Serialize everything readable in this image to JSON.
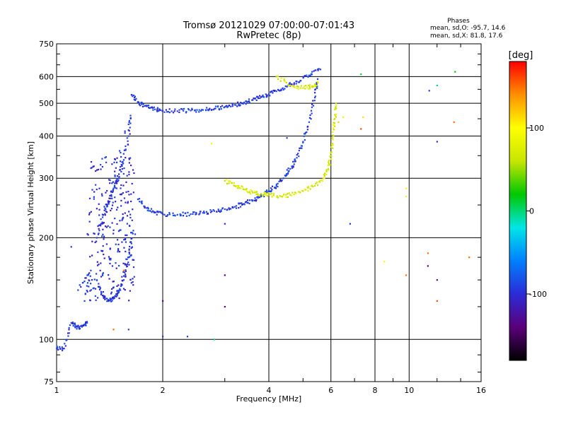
{
  "chart_data": {
    "type": "scatter",
    "title": "Tromsø 20121029 07:00:00-07:01:43",
    "subtitle": "RwPretec (8p)",
    "xlabel": "Frequency [MHz]",
    "ylabel": "Stationary phase Virtual Height [km]",
    "x_scale": "log",
    "y_scale": "log",
    "xlim": [
      1,
      16
    ],
    "ylim": [
      75,
      750
    ],
    "x_ticks": [
      "1",
      "2",
      "4",
      "6",
      "8",
      "10",
      "16"
    ],
    "y_ticks": [
      "75",
      "100",
      "200",
      "300",
      "400",
      "500",
      "600",
      "750"
    ],
    "grid": true,
    "phase_stats": {
      "heading": "Phases",
      "o_line": "mean, sd,O: -95.7, 14.6",
      "x_line": "mean, sd,X: 81.8, 17.6"
    },
    "colorbar": {
      "unit": "[deg]",
      "range": [
        -180,
        180
      ],
      "ticks": [
        "100",
        "0",
        "-100"
      ],
      "colors": [
        "#000000",
        "#5a007a",
        "#2b2bd6",
        "#0080ff",
        "#00e6e6",
        "#00c800",
        "#c8e600",
        "#ffff00",
        "#ff9000",
        "#ff0000"
      ]
    },
    "traces": [
      {
        "mode": "O",
        "phase_deg": -95,
        "color": "#2244ee",
        "points": [
          [
            1.63,
            530
          ],
          [
            1.7,
            505
          ],
          [
            1.8,
            490
          ],
          [
            1.9,
            480
          ],
          [
            2.0,
            475
          ],
          [
            2.2,
            474
          ],
          [
            2.4,
            476
          ],
          [
            2.6,
            478
          ],
          [
            2.8,
            482
          ],
          [
            3.0,
            488
          ],
          [
            3.2,
            495
          ],
          [
            3.4,
            503
          ],
          [
            3.6,
            512
          ],
          [
            3.8,
            522
          ],
          [
            4.0,
            532
          ],
          [
            4.2,
            543
          ],
          [
            4.5,
            560
          ],
          [
            4.8,
            580
          ],
          [
            5.2,
            605
          ],
          [
            5.6,
            630
          ]
        ]
      },
      {
        "mode": "O",
        "phase_deg": -95,
        "color": "#2244ee",
        "points": [
          [
            1.7,
            260
          ],
          [
            1.8,
            245
          ],
          [
            1.9,
            238
          ],
          [
            2.0,
            235
          ],
          [
            2.2,
            234
          ],
          [
            2.4,
            235
          ],
          [
            2.6,
            237
          ],
          [
            2.8,
            240
          ],
          [
            3.0,
            243
          ],
          [
            3.2,
            247
          ],
          [
            3.4,
            252
          ],
          [
            3.6,
            258
          ],
          [
            3.8,
            265
          ],
          [
            4.0,
            275
          ],
          [
            4.2,
            285
          ],
          [
            4.4,
            300
          ],
          [
            4.6,
            320
          ],
          [
            4.8,
            345
          ],
          [
            5.0,
            385
          ],
          [
            5.2,
            440
          ],
          [
            5.4,
            520
          ],
          [
            5.5,
            590
          ]
        ]
      },
      {
        "mode": "O",
        "phase_deg": -100,
        "color": "#1f3fe8",
        "points": [
          [
            1.3,
            200
          ],
          [
            1.35,
            230
          ],
          [
            1.4,
            255
          ],
          [
            1.45,
            280
          ],
          [
            1.5,
            300
          ],
          [
            1.55,
            340
          ],
          [
            1.6,
            400
          ],
          [
            1.62,
            460
          ],
          [
            1.3,
            150
          ],
          [
            1.35,
            135
          ],
          [
            1.4,
            130
          ],
          [
            1.45,
            132
          ],
          [
            1.5,
            138
          ],
          [
            1.55,
            150
          ],
          [
            1.6,
            175
          ],
          [
            1.65,
            210
          ],
          [
            1.2,
            130
          ],
          [
            1.25,
            160
          ],
          [
            1.15,
            140
          ]
        ]
      },
      {
        "mode": "X",
        "phase_deg": 82,
        "color": "#c8e000",
        "points": [
          [
            3.0,
            295
          ],
          [
            3.2,
            285
          ],
          [
            3.4,
            278
          ],
          [
            3.6,
            272
          ],
          [
            3.8,
            270
          ],
          [
            4.0,
            268
          ],
          [
            4.3,
            266
          ],
          [
            4.6,
            268
          ],
          [
            5.0,
            275
          ],
          [
            5.4,
            285
          ],
          [
            5.7,
            300
          ],
          [
            5.9,
            320
          ],
          [
            6.0,
            350
          ],
          [
            6.1,
            400
          ],
          [
            6.15,
            450
          ],
          [
            6.2,
            500
          ]
        ]
      },
      {
        "mode": "X",
        "phase_deg": 82,
        "color": "#c8e000",
        "points": [
          [
            4.2,
            600
          ],
          [
            4.6,
            565
          ],
          [
            5.0,
            555
          ],
          [
            5.3,
            560
          ],
          [
            5.5,
            575
          ]
        ]
      },
      {
        "mode": "low",
        "phase_deg": -100,
        "color": "#2244ee",
        "points": [
          [
            1.0,
            94
          ],
          [
            1.05,
            94
          ],
          [
            1.1,
            112
          ],
          [
            1.14,
            109
          ],
          [
            1.18,
            109
          ],
          [
            1.22,
            112
          ]
        ]
      }
    ],
    "isolated_points": [
      {
        "x": 1.1,
        "y": 188,
        "phase_deg": -95
      },
      {
        "x": 1.55,
        "y": 160,
        "phase_deg": 150
      },
      {
        "x": 1.6,
        "y": 107,
        "phase_deg": -95
      },
      {
        "x": 1.45,
        "y": 107,
        "phase_deg": 150
      },
      {
        "x": 2.0,
        "y": 102,
        "phase_deg": -95
      },
      {
        "x": 2.35,
        "y": 102,
        "phase_deg": -95
      },
      {
        "x": 2.8,
        "y": 100,
        "phase_deg": 0
      },
      {
        "x": 2.75,
        "y": 380,
        "phase_deg": 90
      },
      {
        "x": 3.0,
        "y": 220,
        "phase_deg": -100
      },
      {
        "x": 3.0,
        "y": 155,
        "phase_deg": -140
      },
      {
        "x": 2.0,
        "y": 130,
        "phase_deg": -140
      },
      {
        "x": 3.0,
        "y": 125,
        "phase_deg": -140
      },
      {
        "x": 4.5,
        "y": 395,
        "phase_deg": -95
      },
      {
        "x": 6.8,
        "y": 220,
        "phase_deg": -95
      },
      {
        "x": 7.3,
        "y": 610,
        "phase_deg": 10
      },
      {
        "x": 7.3,
        "y": 420,
        "phase_deg": 160
      },
      {
        "x": 7.4,
        "y": 455,
        "phase_deg": 110
      },
      {
        "x": 8.5,
        "y": 170,
        "phase_deg": 100
      },
      {
        "x": 9.8,
        "y": 155,
        "phase_deg": 150
      },
      {
        "x": 9.8,
        "y": 265,
        "phase_deg": 100
      },
      {
        "x": 9.8,
        "y": 280,
        "phase_deg": 100
      },
      {
        "x": 11.3,
        "y": 180,
        "phase_deg": 150
      },
      {
        "x": 11.3,
        "y": 165,
        "phase_deg": -140
      },
      {
        "x": 11.4,
        "y": 545,
        "phase_deg": -95
      },
      {
        "x": 12.0,
        "y": 385,
        "phase_deg": -100
      },
      {
        "x": 12.0,
        "y": 150,
        "phase_deg": -140
      },
      {
        "x": 12.0,
        "y": 130,
        "phase_deg": 160
      },
      {
        "x": 12.0,
        "y": 565,
        "phase_deg": 0
      },
      {
        "x": 13.4,
        "y": 440,
        "phase_deg": 150
      },
      {
        "x": 13.5,
        "y": 620,
        "phase_deg": 20
      },
      {
        "x": 14.8,
        "y": 175,
        "phase_deg": 150
      },
      {
        "x": 6.3,
        "y": 440,
        "phase_deg": 120
      },
      {
        "x": 6.5,
        "y": 455,
        "phase_deg": 90
      }
    ]
  }
}
